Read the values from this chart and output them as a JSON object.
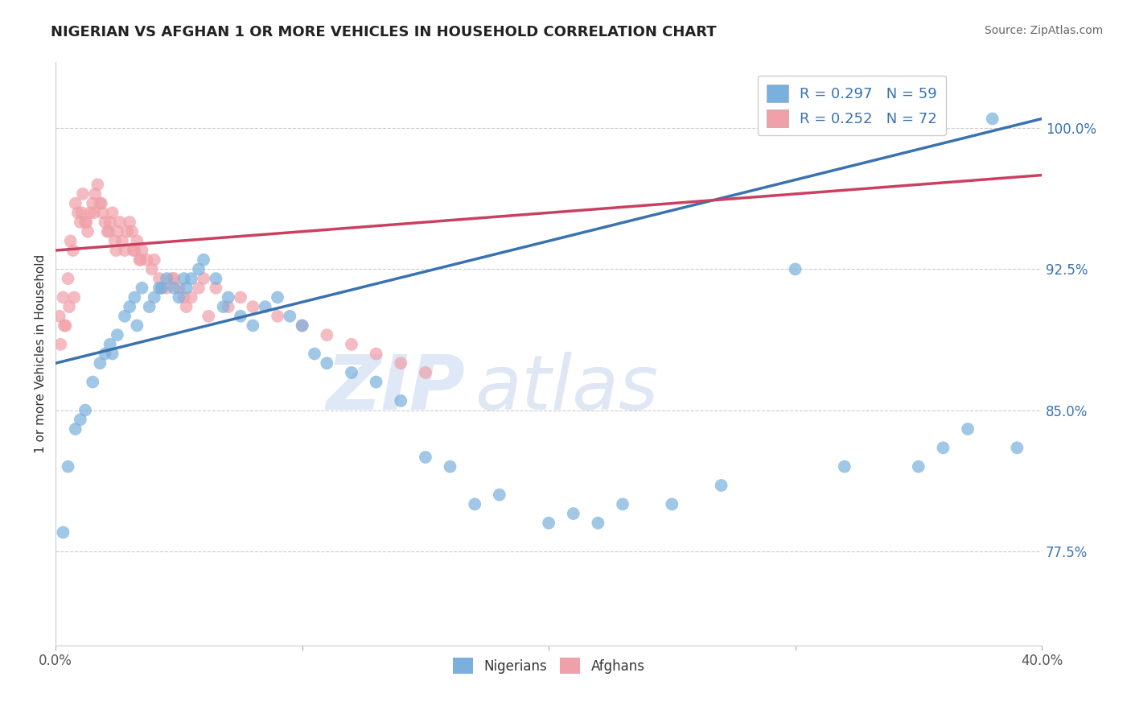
{
  "title": "NIGERIAN VS AFGHAN 1 OR MORE VEHICLES IN HOUSEHOLD CORRELATION CHART",
  "source": "Source: ZipAtlas.com",
  "ylabel": "1 or more Vehicles in Household",
  "xlim": [
    0.0,
    40.0
  ],
  "ylim": [
    72.5,
    103.5
  ],
  "yticks": [
    77.5,
    85.0,
    92.5,
    100.0
  ],
  "xticks": [
    0.0,
    10.0,
    20.0,
    30.0,
    40.0
  ],
  "legend_items": [
    {
      "label": "R = 0.297   N = 59",
      "color": "#7ab0de"
    },
    {
      "label": "R = 0.252   N = 72",
      "color": "#f0a0a8"
    }
  ],
  "legend_bottom": [
    "Nigerians",
    "Afghans"
  ],
  "nigerian_color": "#7ab0de",
  "afghan_color": "#f0a0a8",
  "nigerian_line_color": "#3a72b0",
  "afghan_line_color": "#c94060",
  "watermark_zip": "ZIP",
  "watermark_atlas": "atlas",
  "background_color": "#ffffff",
  "nigerian_x": [
    0.3,
    0.5,
    0.8,
    1.0,
    1.2,
    1.5,
    1.8,
    2.0,
    2.2,
    2.5,
    2.8,
    3.0,
    3.2,
    3.5,
    3.8,
    4.0,
    4.3,
    4.5,
    4.8,
    5.0,
    5.3,
    5.5,
    5.8,
    6.0,
    6.5,
    7.0,
    7.5,
    8.0,
    8.5,
    9.0,
    9.5,
    10.0,
    10.5,
    11.0,
    12.0,
    13.0,
    14.0,
    15.0,
    16.0,
    17.0,
    18.0,
    20.0,
    21.0,
    22.0,
    23.0,
    25.0,
    27.0,
    30.0,
    32.0,
    35.0,
    36.0,
    37.0,
    38.0,
    39.0,
    2.3,
    3.3,
    4.2,
    5.2,
    6.8
  ],
  "nigerian_y": [
    78.5,
    82.0,
    84.0,
    84.5,
    85.0,
    86.5,
    87.5,
    88.0,
    88.5,
    89.0,
    90.0,
    90.5,
    91.0,
    91.5,
    90.5,
    91.0,
    91.5,
    92.0,
    91.5,
    91.0,
    91.5,
    92.0,
    92.5,
    93.0,
    92.0,
    91.0,
    90.0,
    89.5,
    90.5,
    91.0,
    90.0,
    89.5,
    88.0,
    87.5,
    87.0,
    86.5,
    85.5,
    82.5,
    82.0,
    80.0,
    80.5,
    79.0,
    79.5,
    79.0,
    80.0,
    80.0,
    81.0,
    92.5,
    82.0,
    82.0,
    83.0,
    84.0,
    100.5,
    83.0,
    88.0,
    89.5,
    91.5,
    92.0,
    90.5
  ],
  "afghan_x": [
    0.2,
    0.3,
    0.4,
    0.5,
    0.6,
    0.7,
    0.8,
    0.9,
    1.0,
    1.1,
    1.2,
    1.3,
    1.4,
    1.5,
    1.6,
    1.7,
    1.8,
    1.9,
    2.0,
    2.1,
    2.2,
    2.3,
    2.4,
    2.5,
    2.6,
    2.7,
    2.8,
    2.9,
    3.0,
    3.1,
    3.2,
    3.3,
    3.4,
    3.5,
    3.7,
    3.9,
    4.0,
    4.2,
    4.5,
    4.8,
    5.0,
    5.3,
    5.5,
    5.8,
    6.0,
    6.5,
    7.0,
    7.5,
    8.0,
    9.0,
    10.0,
    11.0,
    12.0,
    13.0,
    14.0,
    15.0,
    0.15,
    0.35,
    0.55,
    0.75,
    1.05,
    1.25,
    1.55,
    1.85,
    2.15,
    2.45,
    3.15,
    3.45,
    4.3,
    4.7,
    5.2,
    6.2
  ],
  "afghan_y": [
    88.5,
    91.0,
    89.5,
    92.0,
    94.0,
    93.5,
    96.0,
    95.5,
    95.0,
    96.5,
    95.0,
    94.5,
    95.5,
    96.0,
    96.5,
    97.0,
    96.0,
    95.5,
    95.0,
    94.5,
    95.0,
    95.5,
    94.0,
    94.5,
    95.0,
    94.0,
    93.5,
    94.5,
    95.0,
    94.5,
    93.5,
    94.0,
    93.0,
    93.5,
    93.0,
    92.5,
    93.0,
    92.0,
    91.5,
    92.0,
    91.5,
    90.5,
    91.0,
    91.5,
    92.0,
    91.5,
    90.5,
    91.0,
    90.5,
    90.0,
    89.5,
    89.0,
    88.5,
    88.0,
    87.5,
    87.0,
    90.0,
    89.5,
    90.5,
    91.0,
    95.5,
    95.0,
    95.5,
    96.0,
    94.5,
    93.5,
    93.5,
    93.0,
    91.5,
    92.0,
    91.0,
    90.0
  ]
}
